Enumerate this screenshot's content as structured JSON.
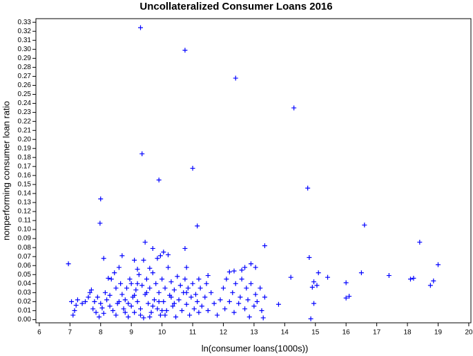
{
  "chart_data": {
    "type": "scatter",
    "title": "Uncollateralized Consumer Loans 2016",
    "x_label": "ln(consumer loans(1000s))",
    "y_label": "nonperforming consumer loan ratio",
    "color": "#0000ff",
    "xlim": [
      5.89,
      20.07
    ],
    "ylim": [
      -0.0035,
      0.334
    ],
    "xticks": [
      6,
      7,
      8,
      9,
      10,
      11,
      12,
      13,
      14,
      15,
      16,
      17,
      18,
      19,
      20
    ],
    "yticks": [
      {
        "value": 0,
        "label": "0.00"
      },
      {
        "value": 0.01,
        "label": "0.01"
      },
      {
        "value": 0.02,
        "label": "0.02"
      },
      {
        "value": 0.03,
        "label": "0.03"
      },
      {
        "value": 0.04,
        "label": "0.04"
      },
      {
        "value": 0.05,
        "label": "0.05"
      },
      {
        "value": 0.06,
        "label": "0.06"
      },
      {
        "value": 0.07,
        "label": "0.07"
      },
      {
        "value": 0.08,
        "label": "0.08"
      },
      {
        "value": 0.09,
        "label": "0.09"
      },
      {
        "value": 0.1,
        "label": "0.10"
      },
      {
        "value": 0.11,
        "label": "0.11"
      },
      {
        "value": 0.12,
        "label": "0.12"
      },
      {
        "value": 0.13,
        "label": "0.13"
      },
      {
        "value": 0.14,
        "label": "0.14"
      },
      {
        "value": 0.15,
        "label": "0.15"
      },
      {
        "value": 0.16,
        "label": "0.16"
      },
      {
        "value": 0.17,
        "label": "0.17"
      },
      {
        "value": 0.18,
        "label": "0.18"
      },
      {
        "value": 0.19,
        "label": "0.19"
      },
      {
        "value": 0.2,
        "label": "0.20"
      },
      {
        "value": 0.21,
        "label": "0.21"
      },
      {
        "value": 0.22,
        "label": "0.22"
      },
      {
        "value": 0.23,
        "label": "0.23"
      },
      {
        "value": 0.24,
        "label": "0.24"
      },
      {
        "value": 0.25,
        "label": "0.25"
      },
      {
        "value": 0.26,
        "label": "0.26"
      },
      {
        "value": 0.27,
        "label": "0.27"
      },
      {
        "value": 0.28,
        "label": "0.28"
      },
      {
        "value": 0.29,
        "label": "0.29"
      },
      {
        "value": 0.3,
        "label": "0.30"
      },
      {
        "value": 0.31,
        "label": "0.31"
      },
      {
        "value": 0.32,
        "label": "0.32"
      },
      {
        "value": 0.33,
        "label": "0.33"
      }
    ],
    "x": [
      9.3,
      10.75,
      12.4,
      14.3,
      9.35,
      11.0,
      9.9,
      14.75,
      8.0,
      7.98,
      11.15,
      16.6,
      9.45,
      13.35,
      10.75,
      9.7,
      8.7,
      9.95,
      8.1,
      9.1,
      10.2,
      6.95,
      14.8,
      18.4,
      19.0,
      18.75,
      18.85,
      18.1,
      18.2,
      17.4,
      16.5,
      16.0,
      16.0,
      16.1,
      15.4,
      15.1,
      14.95,
      15.05,
      14.9,
      14.95,
      14.85,
      14.2,
      13.8,
      12.9,
      12.7,
      12.6,
      13.05,
      12.2,
      12.35,
      11.5,
      10.8,
      9.2,
      9.6,
      7.05,
      7.1,
      7.15,
      7.2,
      7.25,
      7.4,
      7.5,
      7.6,
      7.65,
      7.7,
      7.75,
      7.8,
      7.85,
      7.9,
      7.95,
      8.0,
      8.05,
      8.1,
      8.15,
      8.2,
      8.25,
      8.3,
      8.35,
      8.4,
      8.45,
      8.5,
      8.5,
      8.55,
      8.6,
      8.65,
      8.7,
      8.75,
      8.8,
      8.85,
      8.9,
      8.95,
      9.0,
      9.0,
      9.05,
      9.1,
      9.15,
      9.2,
      9.25,
      9.3,
      9.35,
      9.4,
      9.45,
      9.5,
      9.55,
      9.6,
      9.65,
      9.7,
      9.75,
      9.8,
      9.85,
      9.9,
      9.95,
      10.0,
      10.05,
      10.1,
      10.15,
      10.2,
      10.25,
      10.3,
      10.35,
      10.4,
      10.45,
      10.5,
      10.55,
      10.6,
      10.65,
      10.7,
      10.75,
      10.8,
      10.85,
      10.9,
      10.95,
      11.0,
      11.05,
      11.1,
      11.15,
      11.2,
      11.25,
      11.3,
      11.4,
      11.45,
      11.5,
      11.6,
      11.7,
      11.8,
      11.9,
      12.0,
      12.05,
      12.1,
      12.2,
      12.3,
      12.35,
      12.4,
      12.5,
      12.55,
      12.6,
      12.7,
      12.75,
      12.8,
      12.85,
      12.9,
      13.0,
      13.05,
      13.1,
      13.2,
      13.25,
      13.3,
      13.35,
      8.9,
      9.1,
      9.3,
      9.5,
      9.7,
      9.9,
      10.1,
      10.3,
      8.3,
      8.6,
      8.8,
      9.2,
      9.6,
      10.0,
      10.4,
      10.8,
      11.2,
      9.85,
      10.05,
      9.4
    ],
    "values": [
      0.324,
      0.299,
      0.268,
      0.235,
      0.184,
      0.168,
      0.155,
      0.146,
      0.134,
      0.107,
      0.104,
      0.105,
      0.086,
      0.082,
      0.079,
      0.079,
      0.071,
      0.071,
      0.068,
      0.066,
      0.072,
      0.062,
      0.069,
      0.086,
      0.061,
      0.038,
      0.043,
      0.045,
      0.046,
      0.049,
      0.052,
      0.041,
      0.024,
      0.026,
      0.047,
      0.052,
      0.042,
      0.038,
      0.036,
      0.018,
      0.001,
      0.047,
      0.017,
      0.062,
      0.058,
      0.055,
      0.058,
      0.053,
      0.054,
      0.049,
      0.058,
      0.056,
      0.057,
      0.02,
      0.005,
      0.01,
      0.016,
      0.022,
      0.018,
      0.02,
      0.025,
      0.03,
      0.033,
      0.012,
      0.02,
      0.008,
      0.025,
      0.003,
      0.018,
      0.013,
      0.007,
      0.03,
      0.022,
      0.046,
      0.027,
      0.045,
      0.01,
      0.052,
      0.035,
      0.005,
      0.018,
      0.058,
      0.04,
      0.028,
      0.012,
      0.022,
      0.035,
      0.003,
      0.045,
      0.015,
      0.04,
      0.025,
      0.008,
      0.033,
      0.02,
      0.05,
      0.012,
      0.038,
      0.002,
      0.028,
      0.045,
      0.018,
      0.035,
      0.008,
      0.052,
      0.022,
      0.04,
      0.012,
      0.03,
      0.005,
      0.045,
      0.02,
      0.035,
      0.01,
      0.058,
      0.027,
      0.042,
      0.015,
      0.033,
      0.003,
      0.048,
      0.022,
      0.038,
      0.01,
      0.03,
      0.045,
      0.017,
      0.035,
      0.005,
      0.025,
      0.04,
      0.012,
      0.028,
      0.02,
      0.008,
      0.035,
      0.015,
      0.025,
      0.04,
      0.01,
      0.03,
      0.018,
      0.005,
      0.022,
      0.035,
      0.012,
      0.045,
      0.02,
      0.03,
      0.008,
      0.04,
      0.018,
      0.025,
      0.045,
      0.012,
      0.035,
      0.022,
      0.003,
      0.04,
      0.015,
      0.028,
      0.02,
      0.035,
      0.01,
      0.002,
      0.025,
      0.018,
      0.027,
      0.005,
      0.03,
      0.015,
      0.02,
      0.005,
      0.025,
      0.015,
      0.02,
      0.008,
      0.04,
      0.003,
      0.01,
      0.018,
      0.03,
      0.045,
      0.068,
      0.075,
      0.066
    ]
  }
}
